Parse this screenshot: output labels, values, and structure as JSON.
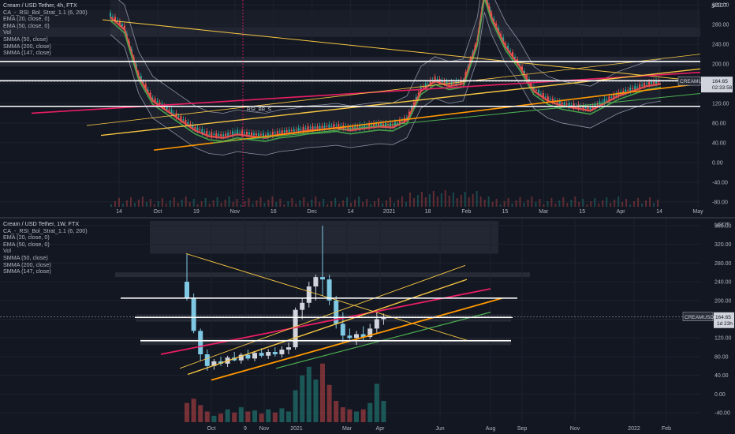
{
  "theme": {
    "bg": "#131722",
    "grid": "#1e222d",
    "text": "#b2b5be",
    "up": "#26a69a",
    "down": "#ef5350",
    "bb": "#8c92a4",
    "red_line": "#e91e63",
    "orange": "#ff9800",
    "yellow": "#f5c542",
    "green": "#4caf50",
    "white": "#ffffff"
  },
  "top": {
    "title": "Cream / USD Tether, 4h, FTX",
    "indicators": [
      "CA_-_RSI_Bol_Strat_1.1 (6, 200)",
      "EMA (20, close, 0)",
      "EMA (50, close, 0)",
      "Vol",
      "SMMA (50, close)",
      "SMMA (200, close)",
      "SMMA (147, close)"
    ],
    "currency_label": "USDT",
    "price_tag": "164.65",
    "symbol_tag": "CREAMUSDT",
    "countdown": "02:33:58",
    "annotation": "RSI_BB_S",
    "y_top_partial": "3"
  },
  "bottom": {
    "title": "Cream / USD Tether, 1W, FTX",
    "indicators": [
      "CA_-_RSI_Bol_Strat_1.1 (6, 200)",
      "EMA (20, close, 0)",
      "EMA (50, close, 0)",
      "Vol",
      "SMMA (50, close)",
      "SMMA (200, close)",
      "SMMA (147, close)"
    ],
    "currency_label": "USDT",
    "price_tag": "164.65",
    "symbol_tag": "CREAMUSDT",
    "countdown": "1d 23h"
  },
  "chart_data": [
    {
      "type": "candlestick",
      "title": "Cream / USD Tether, 4h, FTX",
      "ylim": [
        -90,
        330
      ],
      "y_ticks": [
        320,
        280,
        240,
        200,
        160,
        120,
        80,
        40,
        0,
        -40,
        -80
      ],
      "y_tick_labels": [
        "320.00",
        "280.00",
        "240.00",
        "200.00",
        "160.00",
        "120.00",
        "80.00",
        "40.00",
        "0.00",
        "-40.00",
        "-80.00"
      ],
      "x_tick_labels": [
        "14",
        "Oct",
        "19",
        "Nov",
        "16",
        "Dec",
        "14",
        "2021",
        "18",
        "Feb",
        "15",
        "Mar",
        "15",
        "Apr",
        "14",
        "May"
      ],
      "current_price": 164.65,
      "horizontal_levels": [
        205,
        166,
        114
      ],
      "price_path": [
        {
          "t": 0,
          "p": 300
        },
        {
          "t": 2,
          "p": 275
        },
        {
          "t": 4,
          "p": 180
        },
        {
          "t": 6,
          "p": 130
        },
        {
          "t": 8,
          "p": 110
        },
        {
          "t": 10,
          "p": 90
        },
        {
          "t": 12,
          "p": 70
        },
        {
          "t": 14,
          "p": 58
        },
        {
          "t": 16,
          "p": 55
        },
        {
          "t": 18,
          "p": 62
        },
        {
          "t": 20,
          "p": 58
        },
        {
          "t": 22,
          "p": 55
        },
        {
          "t": 24,
          "p": 62
        },
        {
          "t": 26,
          "p": 65
        },
        {
          "t": 28,
          "p": 70
        },
        {
          "t": 30,
          "p": 72
        },
        {
          "t": 32,
          "p": 75
        },
        {
          "t": 34,
          "p": 70
        },
        {
          "t": 36,
          "p": 74
        },
        {
          "t": 38,
          "p": 78
        },
        {
          "t": 40,
          "p": 76
        },
        {
          "t": 42,
          "p": 90
        },
        {
          "t": 44,
          "p": 150
        },
        {
          "t": 46,
          "p": 170
        },
        {
          "t": 48,
          "p": 160
        },
        {
          "t": 50,
          "p": 165
        },
        {
          "t": 52,
          "p": 250
        },
        {
          "t": 53,
          "p": 345
        },
        {
          "t": 54,
          "p": 300
        },
        {
          "t": 56,
          "p": 240
        },
        {
          "t": 58,
          "p": 200
        },
        {
          "t": 60,
          "p": 150
        },
        {
          "t": 62,
          "p": 130
        },
        {
          "t": 64,
          "p": 120
        },
        {
          "t": 66,
          "p": 115
        },
        {
          "t": 68,
          "p": 110
        },
        {
          "t": 70,
          "p": 125
        },
        {
          "t": 72,
          "p": 140
        },
        {
          "t": 74,
          "p": 150
        },
        {
          "t": 76,
          "p": 160
        },
        {
          "t": 78,
          "p": 164.65
        }
      ]
    },
    {
      "type": "candlestick",
      "title": "Cream / USD Tether, 1W, FTX",
      "ylim": [
        -60,
        375
      ],
      "y_ticks": [
        360,
        320,
        280,
        240,
        200,
        160,
        120,
        80,
        40,
        0,
        -40
      ],
      "y_tick_labels": [
        "360.00",
        "320.00",
        "280.00",
        "240.00",
        "200.00",
        "160.00",
        "120.00",
        "80.00",
        "40.00",
        "0.00",
        "-40.00"
      ],
      "x_tick_labels": [
        "Oct",
        "9",
        "Nov",
        "2021",
        "Mar",
        "Apr",
        "Jun",
        "Aug",
        "Sep",
        "Nov",
        "2022",
        "Feb"
      ],
      "current_price": 164.65,
      "horizontal_levels": [
        205,
        164,
        114
      ],
      "candles": [
        {
          "o": 240,
          "h": 300,
          "l": 200,
          "c": 205
        },
        {
          "o": 205,
          "h": 215,
          "l": 130,
          "c": 135
        },
        {
          "o": 135,
          "h": 140,
          "l": 70,
          "c": 85
        },
        {
          "o": 85,
          "h": 95,
          "l": 50,
          "c": 60
        },
        {
          "o": 60,
          "h": 75,
          "l": 52,
          "c": 70
        },
        {
          "o": 70,
          "h": 80,
          "l": 60,
          "c": 65
        },
        {
          "o": 65,
          "h": 82,
          "l": 58,
          "c": 78
        },
        {
          "o": 78,
          "h": 90,
          "l": 70,
          "c": 72
        },
        {
          "o": 72,
          "h": 88,
          "l": 65,
          "c": 84
        },
        {
          "o": 84,
          "h": 95,
          "l": 72,
          "c": 76
        },
        {
          "o": 76,
          "h": 92,
          "l": 70,
          "c": 88
        },
        {
          "o": 88,
          "h": 98,
          "l": 78,
          "c": 82
        },
        {
          "o": 82,
          "h": 96,
          "l": 75,
          "c": 90
        },
        {
          "o": 90,
          "h": 100,
          "l": 80,
          "c": 85
        },
        {
          "o": 85,
          "h": 102,
          "l": 78,
          "c": 95
        },
        {
          "o": 95,
          "h": 110,
          "l": 85,
          "c": 100
        },
        {
          "o": 100,
          "h": 185,
          "l": 95,
          "c": 180
        },
        {
          "o": 180,
          "h": 205,
          "l": 160,
          "c": 195
        },
        {
          "o": 195,
          "h": 240,
          "l": 185,
          "c": 230
        },
        {
          "o": 230,
          "h": 255,
          "l": 200,
          "c": 250
        },
        {
          "o": 250,
          "h": 360,
          "l": 210,
          "c": 245
        },
        {
          "o": 245,
          "h": 255,
          "l": 190,
          "c": 200
        },
        {
          "o": 200,
          "h": 210,
          "l": 140,
          "c": 150
        },
        {
          "o": 150,
          "h": 175,
          "l": 110,
          "c": 125
        },
        {
          "o": 125,
          "h": 140,
          "l": 112,
          "c": 120
        },
        {
          "o": 120,
          "h": 135,
          "l": 105,
          "c": 128
        },
        {
          "o": 128,
          "h": 145,
          "l": 115,
          "c": 122
        },
        {
          "o": 122,
          "h": 150,
          "l": 118,
          "c": 140
        },
        {
          "o": 140,
          "h": 175,
          "l": 130,
          "c": 160
        },
        {
          "o": 160,
          "h": 172,
          "l": 148,
          "c": 165
        }
      ],
      "volume": [
        18,
        22,
        16,
        10,
        6,
        8,
        12,
        9,
        14,
        10,
        11,
        8,
        12,
        9,
        13,
        10,
        30,
        44,
        52,
        40,
        55,
        35,
        20,
        14,
        12,
        10,
        12,
        18,
        36,
        20
      ]
    }
  ]
}
